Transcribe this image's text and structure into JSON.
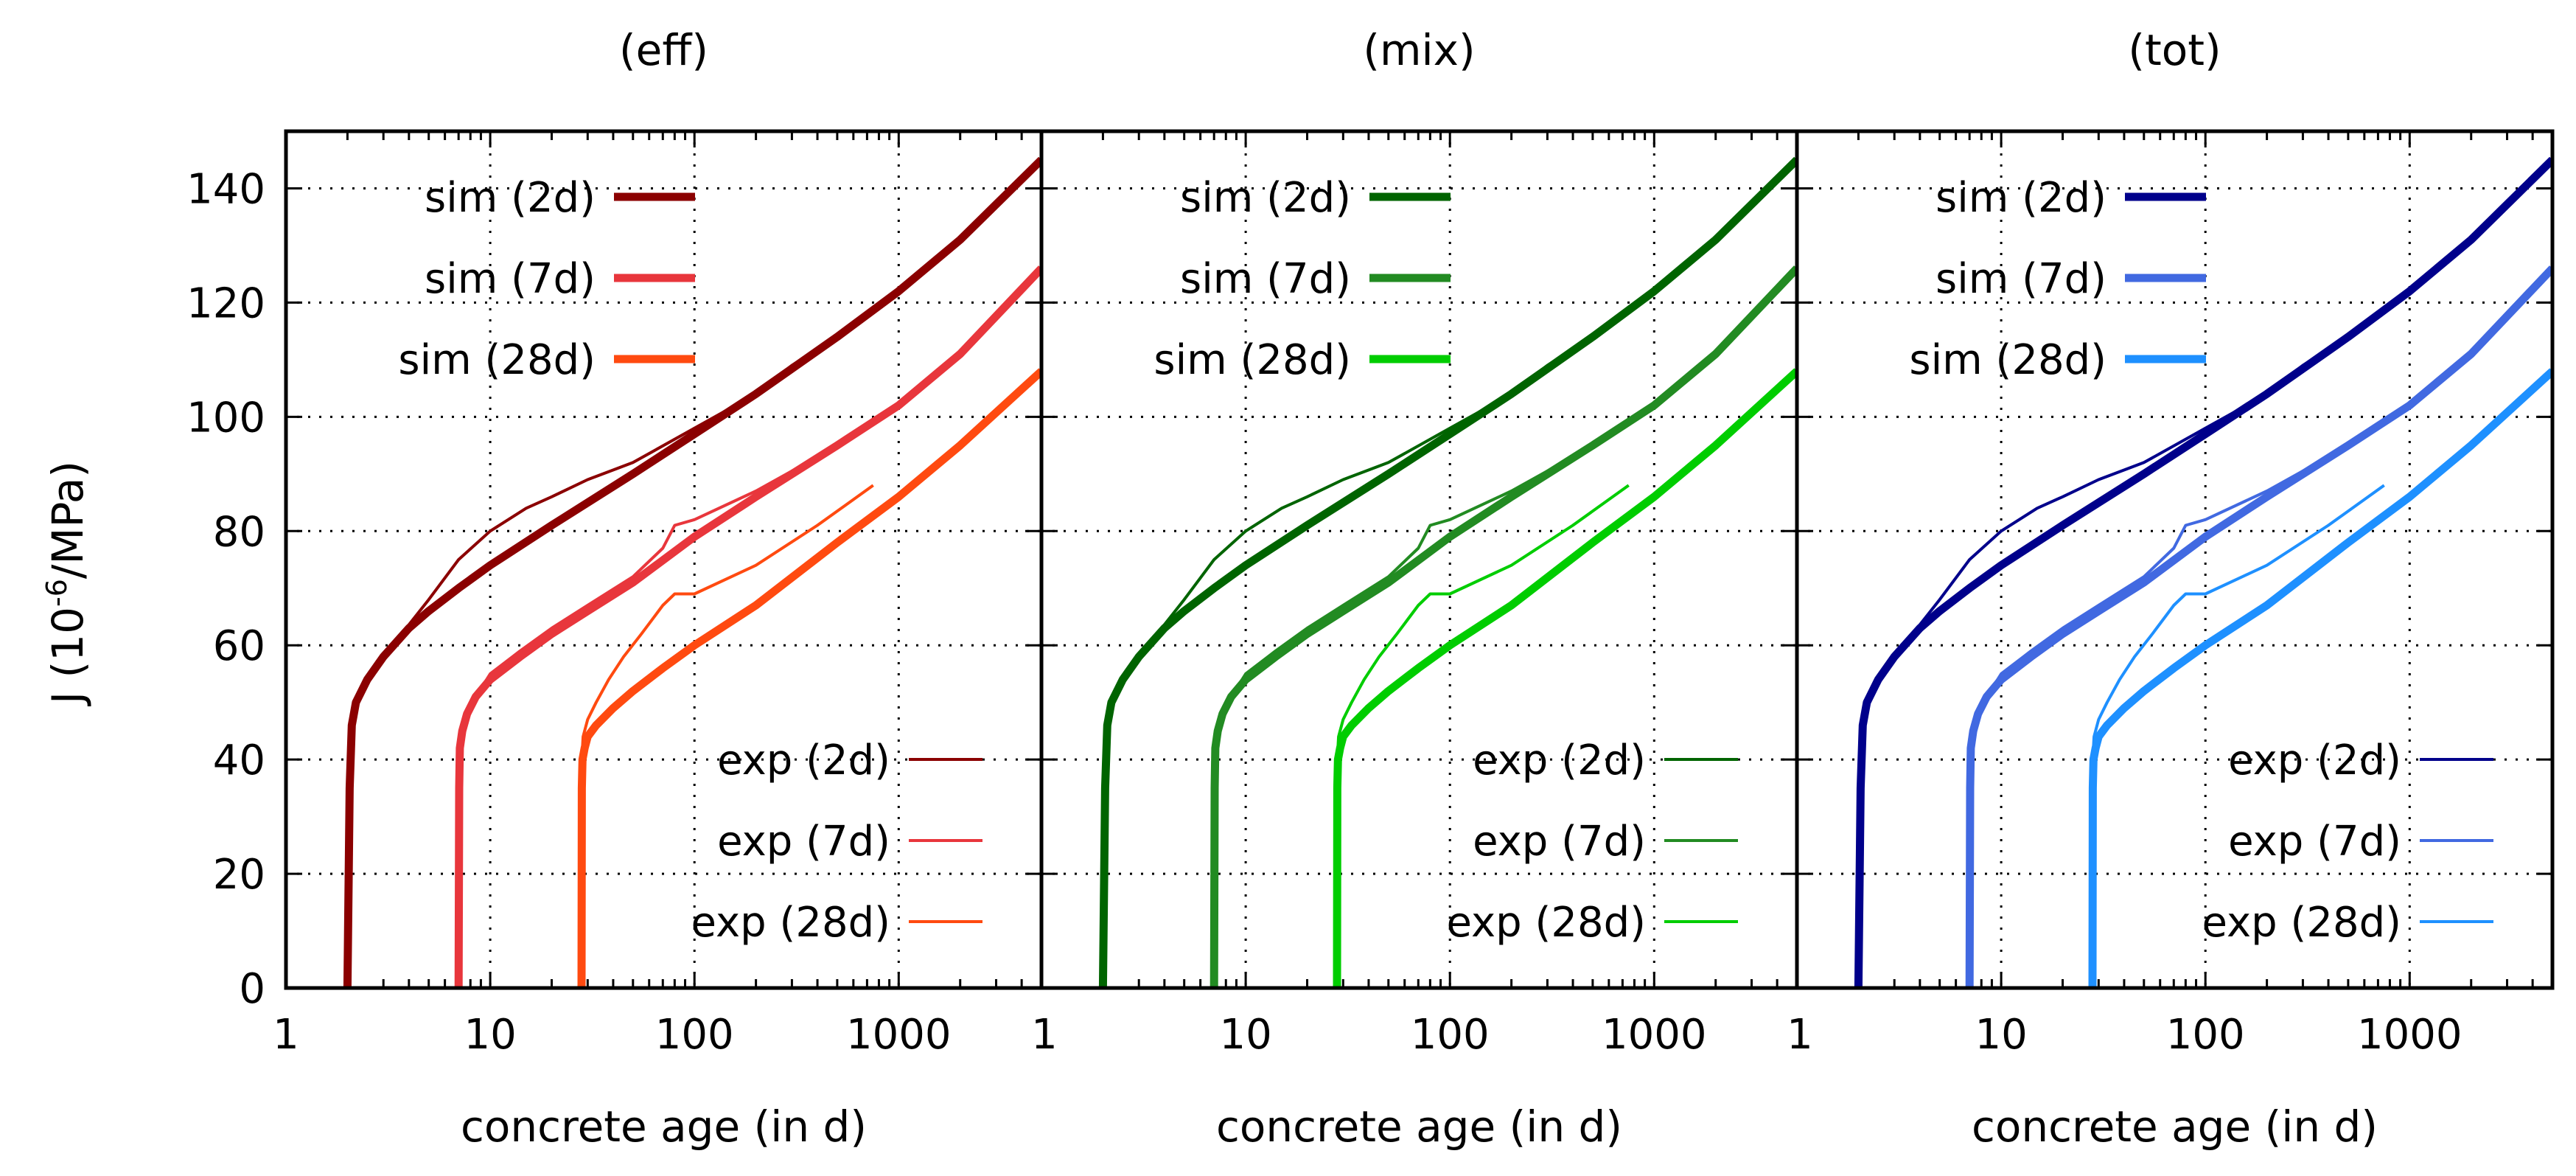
{
  "chart_data": [
    {
      "type": "line",
      "title": "(eff)",
      "xlabel": "concrete age (in d)",
      "ylabel": "J (10-6/MPa)",
      "ylabel_main": "J (10",
      "ylabel_sup": "-6",
      "ylabel_tail": "/MPa)",
      "xscale": "log",
      "xlim": [
        1,
        5000
      ],
      "ylim": [
        0,
        150
      ],
      "xticks": [
        1,
        10,
        100,
        1000
      ],
      "xtick_labels": [
        "1",
        "10",
        "100",
        "1000"
      ],
      "yticks": [
        0,
        20,
        40,
        60,
        80,
        100,
        120,
        140
      ],
      "ytick_labels": [
        "0",
        "20",
        "40",
        "60",
        "80",
        "100",
        "120",
        "140"
      ],
      "grid": true,
      "legend_sim_position": "top-left",
      "legend_exp_position": "bottom-right",
      "series": [
        {
          "name": "sim (2d)",
          "kind": "sim",
          "color": "#8b0000",
          "x": [
            2,
            2.05,
            2.1,
            2.2,
            2.5,
            3,
            4,
            5,
            7,
            10,
            20,
            50,
            100,
            200,
            500,
            1000,
            2000,
            5000
          ],
          "y": [
            0,
            35,
            46,
            50,
            54,
            58,
            63,
            66,
            70,
            74,
            81,
            90,
            97,
            104,
            114,
            122,
            131,
            145
          ]
        },
        {
          "name": "sim (7d)",
          "kind": "sim",
          "color": "#e8363c",
          "x": [
            7,
            7.05,
            7.1,
            7.3,
            7.7,
            8.5,
            10,
            14,
            20,
            30,
            50,
            100,
            200,
            500,
            1000,
            2000,
            5000
          ],
          "y": [
            0,
            35,
            42,
            45,
            48,
            51,
            54,
            58,
            62,
            66,
            71,
            79,
            86,
            95,
            102,
            111,
            126
          ]
        },
        {
          "name": "sim (28d)",
          "kind": "sim",
          "color": "#ff4a10",
          "x": [
            28,
            28.1,
            28.3,
            29,
            30,
            33,
            40,
            50,
            70,
            100,
            200,
            500,
            1000,
            2000,
            5000
          ],
          "y": [
            0,
            35,
            40,
            42,
            44,
            46,
            49,
            52,
            56,
            60,
            67,
            78,
            86,
            95,
            108
          ]
        },
        {
          "name": "exp (2d)",
          "kind": "exp",
          "color": "#8b0000",
          "x": [
            2,
            2.05,
            2.1,
            2.3,
            2.8,
            3.5,
            5,
            7,
            10,
            15,
            20,
            30,
            50,
            100,
            200,
            300,
            500
          ],
          "y": [
            0,
            40,
            48,
            52,
            56,
            61,
            68,
            75,
            80,
            84,
            86,
            89,
            92,
            98,
            104,
            109,
            114
          ]
        },
        {
          "name": "exp (7d)",
          "kind": "exp",
          "color": "#e8363c",
          "x": [
            7,
            7.05,
            7.2,
            7.6,
            8.5,
            10,
            14,
            20,
            30,
            50,
            70,
            80,
            100,
            200,
            400,
            700
          ],
          "y": [
            0,
            38,
            43,
            47,
            51,
            55,
            59,
            63,
            67,
            72,
            77,
            81,
            82,
            87,
            93,
            98
          ]
        },
        {
          "name": "exp (28d)",
          "kind": "exp",
          "color": "#ff4a10",
          "x": [
            28,
            28.1,
            28.5,
            30,
            33,
            38,
            45,
            55,
            70,
            80,
            100,
            200,
            400,
            750
          ],
          "y": [
            0,
            40,
            44,
            47,
            50,
            54,
            58,
            62,
            67,
            69,
            69,
            74,
            81,
            88
          ]
        }
      ]
    },
    {
      "type": "line",
      "title": "(mix)",
      "xlabel": "concrete age (in d)",
      "xscale": "log",
      "xlim": [
        1,
        5000
      ],
      "ylim": [
        0,
        150
      ],
      "xticks": [
        1,
        10,
        100,
        1000
      ],
      "xtick_labels": [
        "1",
        "10",
        "100",
        "1000"
      ],
      "yticks": [
        0,
        20,
        40,
        60,
        80,
        100,
        120,
        140
      ],
      "grid": true,
      "legend_sim_position": "top-left",
      "legend_exp_position": "bottom-right",
      "series": [
        {
          "name": "sim (2d)",
          "kind": "sim",
          "color": "#006400",
          "x": [
            2,
            2.05,
            2.1,
            2.2,
            2.5,
            3,
            4,
            5,
            7,
            10,
            20,
            50,
            100,
            200,
            500,
            1000,
            2000,
            5000
          ],
          "y": [
            0,
            35,
            46,
            50,
            54,
            58,
            63,
            66,
            70,
            74,
            81,
            90,
            97,
            104,
            114,
            122,
            131,
            145
          ]
        },
        {
          "name": "sim (7d)",
          "kind": "sim",
          "color": "#228b22",
          "x": [
            7,
            7.05,
            7.1,
            7.3,
            7.7,
            8.5,
            10,
            14,
            20,
            30,
            50,
            100,
            200,
            500,
            1000,
            2000,
            5000
          ],
          "y": [
            0,
            35,
            42,
            45,
            48,
            51,
            54,
            58,
            62,
            66,
            71,
            79,
            86,
            95,
            102,
            111,
            126
          ]
        },
        {
          "name": "sim (28d)",
          "kind": "sim",
          "color": "#00cd00",
          "x": [
            28,
            28.1,
            28.3,
            29,
            30,
            33,
            40,
            50,
            70,
            100,
            200,
            500,
            1000,
            2000,
            5000
          ],
          "y": [
            0,
            35,
            40,
            42,
            44,
            46,
            49,
            52,
            56,
            60,
            67,
            78,
            86,
            95,
            108
          ]
        },
        {
          "name": "exp (2d)",
          "kind": "exp",
          "color": "#006400",
          "x": [
            2,
            2.05,
            2.1,
            2.3,
            2.8,
            3.5,
            5,
            7,
            10,
            15,
            20,
            30,
            50,
            100,
            200,
            300,
            500
          ],
          "y": [
            0,
            40,
            48,
            52,
            56,
            61,
            68,
            75,
            80,
            84,
            86,
            89,
            92,
            98,
            104,
            109,
            114
          ]
        },
        {
          "name": "exp (7d)",
          "kind": "exp",
          "color": "#228b22",
          "x": [
            7,
            7.05,
            7.2,
            7.6,
            8.5,
            10,
            14,
            20,
            30,
            50,
            70,
            80,
            100,
            200,
            400,
            700
          ],
          "y": [
            0,
            38,
            43,
            47,
            51,
            55,
            59,
            63,
            67,
            72,
            77,
            81,
            82,
            87,
            93,
            98
          ]
        },
        {
          "name": "exp (28d)",
          "kind": "exp",
          "color": "#00cd00",
          "x": [
            28,
            28.1,
            28.5,
            30,
            33,
            38,
            45,
            55,
            70,
            80,
            100,
            200,
            400,
            750
          ],
          "y": [
            0,
            40,
            44,
            47,
            50,
            54,
            58,
            62,
            67,
            69,
            69,
            74,
            81,
            88
          ]
        }
      ]
    },
    {
      "type": "line",
      "title": "(tot)",
      "xlabel": "concrete age (in d)",
      "xscale": "log",
      "xlim": [
        1,
        5000
      ],
      "ylim": [
        0,
        150
      ],
      "xticks": [
        1,
        10,
        100,
        1000
      ],
      "xtick_labels": [
        "1",
        "10",
        "100",
        "1000"
      ],
      "yticks": [
        0,
        20,
        40,
        60,
        80,
        100,
        120,
        140
      ],
      "grid": true,
      "legend_sim_position": "top-left",
      "legend_exp_position": "bottom-right",
      "series": [
        {
          "name": "sim (2d)",
          "kind": "sim",
          "color": "#00008b",
          "x": [
            2,
            2.05,
            2.1,
            2.2,
            2.5,
            3,
            4,
            5,
            7,
            10,
            20,
            50,
            100,
            200,
            500,
            1000,
            2000,
            5000
          ],
          "y": [
            0,
            35,
            46,
            50,
            54,
            58,
            63,
            66,
            70,
            74,
            81,
            90,
            97,
            104,
            114,
            122,
            131,
            145
          ]
        },
        {
          "name": "sim (7d)",
          "kind": "sim",
          "color": "#4169e1",
          "x": [
            7,
            7.05,
            7.1,
            7.3,
            7.7,
            8.5,
            10,
            14,
            20,
            30,
            50,
            100,
            200,
            500,
            1000,
            2000,
            5000
          ],
          "y": [
            0,
            35,
            42,
            45,
            48,
            51,
            54,
            58,
            62,
            66,
            71,
            79,
            86,
            95,
            102,
            111,
            126
          ]
        },
        {
          "name": "sim (28d)",
          "kind": "sim",
          "color": "#1e90ff",
          "x": [
            28,
            28.1,
            28.3,
            29,
            30,
            33,
            40,
            50,
            70,
            100,
            200,
            500,
            1000,
            2000,
            5000
          ],
          "y": [
            0,
            35,
            40,
            42,
            44,
            46,
            49,
            52,
            56,
            60,
            67,
            78,
            86,
            95,
            108
          ]
        },
        {
          "name": "exp (2d)",
          "kind": "exp",
          "color": "#00008b",
          "x": [
            2,
            2.05,
            2.1,
            2.3,
            2.8,
            3.5,
            5,
            7,
            10,
            15,
            20,
            30,
            50,
            100,
            200,
            300,
            500
          ],
          "y": [
            0,
            40,
            48,
            52,
            56,
            61,
            68,
            75,
            80,
            84,
            86,
            89,
            92,
            98,
            104,
            109,
            114
          ]
        },
        {
          "name": "exp (7d)",
          "kind": "exp",
          "color": "#4169e1",
          "x": [
            7,
            7.05,
            7.2,
            7.6,
            8.5,
            10,
            14,
            20,
            30,
            50,
            70,
            80,
            100,
            200,
            400,
            700
          ],
          "y": [
            0,
            38,
            43,
            47,
            51,
            55,
            59,
            63,
            67,
            72,
            77,
            81,
            82,
            87,
            93,
            98
          ]
        },
        {
          "name": "exp (28d)",
          "kind": "exp",
          "color": "#1e90ff",
          "x": [
            28,
            28.1,
            28.5,
            30,
            33,
            38,
            45,
            55,
            70,
            80,
            100,
            200,
            400,
            750
          ],
          "y": [
            0,
            40,
            44,
            47,
            50,
            54,
            58,
            62,
            67,
            69,
            69,
            74,
            81,
            88
          ]
        }
      ]
    }
  ]
}
